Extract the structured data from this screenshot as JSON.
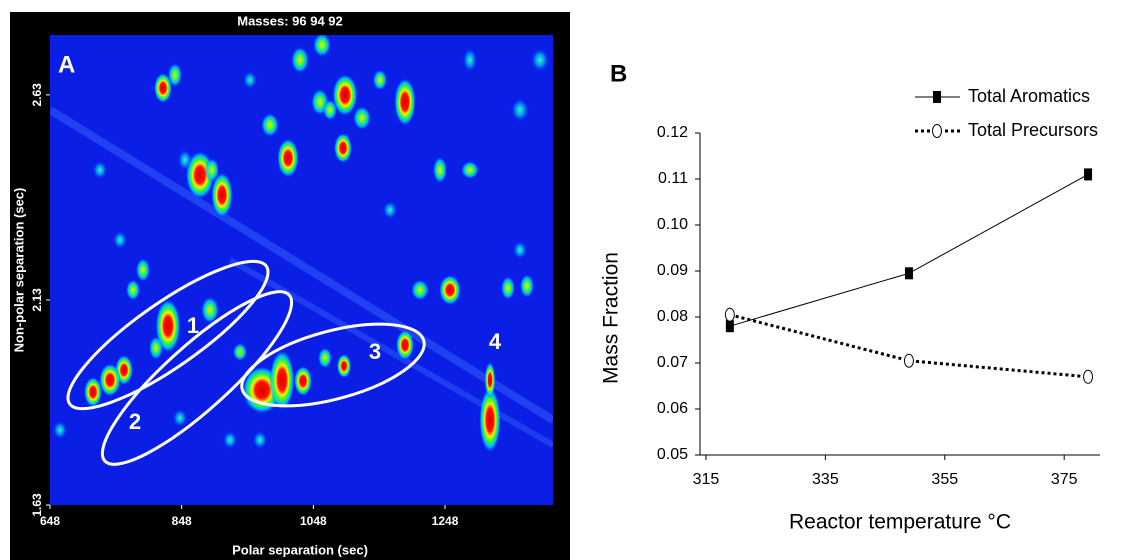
{
  "chart_data": [
    {
      "type": "heatmap-image",
      "title": "Masses: 96 94 92",
      "panel_label": "A",
      "x_label": "Polar separation (sec)",
      "y_label": "Non-polar separation (sec)",
      "xlim": [
        648,
        1412
      ],
      "ylim": [
        1.63,
        2.776
      ],
      "xticks": [
        648,
        848,
        1048,
        1248
      ],
      "yticks": [
        2.63,
        2.13,
        1.63
      ],
      "annotations": [
        "1",
        "2",
        "3",
        "4"
      ]
    },
    {
      "type": "line",
      "panel_label": "B",
      "x_label": "Reactor temperature °C",
      "y_label": "Mass Fraction",
      "x": [
        319,
        349,
        379
      ],
      "series": [
        {
          "name": "Total Aromatics",
          "color": "#000000",
          "marker": "square",
          "line_style": "solid",
          "values": [
            0.078,
            0.0895,
            0.111
          ]
        },
        {
          "name": "Total Precursors",
          "color": "#000000",
          "marker": "open-ellipse",
          "line_style": "dotted",
          "values": [
            0.0805,
            0.0705,
            0.067
          ]
        }
      ],
      "xlim": [
        314,
        381
      ],
      "ylim": [
        0.05,
        0.12
      ],
      "xticks": [
        315,
        335,
        355,
        375
      ],
      "yticks": [
        0.05,
        0.06,
        0.07,
        0.08,
        0.09,
        {
          "value": 0.1,
          "label": "0.10"
        },
        0.11,
        0.12
      ],
      "legend": "upper right"
    }
  ]
}
